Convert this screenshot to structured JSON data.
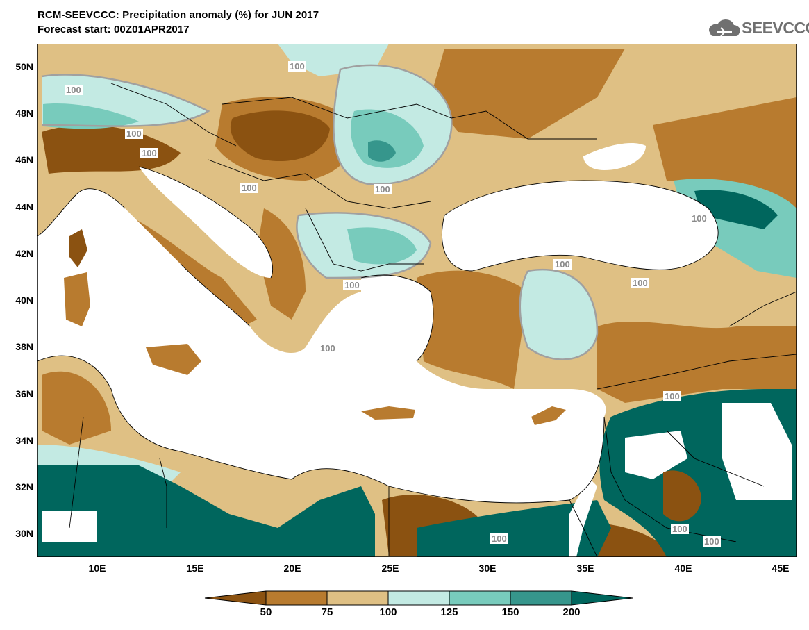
{
  "header": {
    "title": "RCM-SEEVCCC: Precipitation anomaly (%) for JUN 2017",
    "subtitle": "Forecast start: 00Z01APR2017",
    "logo_text": "SEEVCCC",
    "logo_icon": "cloud-icon"
  },
  "axes": {
    "lat_labels": [
      "50N",
      "48N",
      "46N",
      "44N",
      "42N",
      "40N",
      "38N",
      "36N",
      "34N",
      "32N",
      "30N"
    ],
    "lon_labels": [
      "10E",
      "15E",
      "20E",
      "25E",
      "30E",
      "35E",
      "40E",
      "45E"
    ]
  },
  "contour_labels": [
    "100",
    "100",
    "100",
    "100",
    "100",
    "100",
    "100",
    "100",
    "100",
    "100",
    "100",
    "100",
    "100",
    "100",
    "100",
    "100",
    "100"
  ],
  "colorbar": {
    "labels": [
      "50",
      "75",
      "100",
      "125",
      "150",
      "200"
    ],
    "colors": [
      "#8b5211",
      "#b87b2f",
      "#dfc084",
      "#c3eae3",
      "#78cbbc",
      "#36968c",
      "#00665d"
    ]
  },
  "colors": {
    "sea": "#ffffff",
    "class_lt50": "#8b5211",
    "class_50_75": "#b87b2f",
    "class_75_100": "#dfc084",
    "class_100_125": "#c3eae3",
    "class_125_150": "#78cbbc",
    "class_150_200": "#36968c",
    "class_gt200": "#00665d"
  }
}
